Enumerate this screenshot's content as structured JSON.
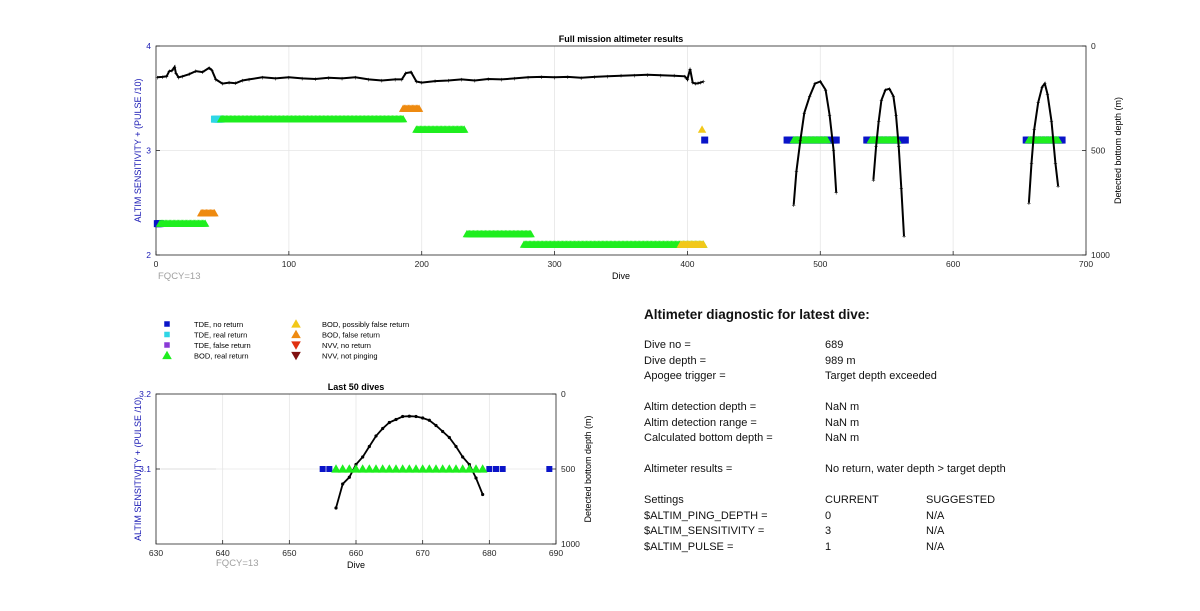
{
  "chart_data": [
    {
      "type": "scatter",
      "title": "Full mission altimeter results",
      "xlabel": "Dive",
      "ylabel": "ALTIM SENSITIVITY + (PULSE /10)",
      "y2label": "Detected bottom depth (m)",
      "xlim": [
        0,
        700
      ],
      "ylim": [
        2,
        4
      ],
      "y2lim": [
        1000,
        0
      ],
      "xticks": [
        0,
        100,
        200,
        300,
        400,
        500,
        600,
        700
      ],
      "yticks": [
        2,
        3,
        4
      ],
      "y2ticks": [
        0,
        500,
        1000
      ],
      "annotation": "FQCY=13",
      "grid": true,
      "series": [
        {
          "name": "Detected bottom depth",
          "color": "#000000",
          "marker_runs": [
            {
              "symbol": "tde-real",
              "x0": 44,
              "x1": 49,
              "y": 3.3
            },
            {
              "symbol": "bod-real",
              "x0": 49,
              "x1": 186,
              "y": 3.3
            },
            {
              "symbol": "bod-false",
              "x0": 186,
              "x1": 198,
              "y": 3.4
            },
            {
              "symbol": "bod-real",
              "x0": 196,
              "x1": 232,
              "y": 3.2
            },
            {
              "symbol": "tde-none",
              "x0": 1,
              "x1": 3,
              "y": 2.3
            },
            {
              "symbol": "bod-real",
              "x0": 3,
              "x1": 37,
              "y": 2.3
            },
            {
              "symbol": "bod-false",
              "x0": 34,
              "x1": 44,
              "y": 2.4
            },
            {
              "symbol": "bod-real",
              "x0": 234,
              "x1": 282,
              "y": 2.2
            },
            {
              "symbol": "bod-real",
              "x0": 277,
              "x1": 412,
              "y": 2.1
            },
            {
              "symbol": "bod-possibly-false",
              "x0": 395,
              "x1": 412,
              "y": 2.1
            },
            {
              "symbol": "tde-none",
              "x0": 413,
              "x1": 413,
              "y": 3.1
            },
            {
              "symbol": "bod-possibly-false",
              "x0": 411,
              "x1": 411,
              "y": 3.2
            },
            {
              "symbol": "tde-none",
              "x0": 475,
              "x1": 512,
              "y": 3.1
            },
            {
              "symbol": "bod-real",
              "x0": 480,
              "x1": 505,
              "y": 3.1
            },
            {
              "symbol": "tde-none",
              "x0": 535,
              "x1": 564,
              "y": 3.1
            },
            {
              "symbol": "bod-real",
              "x0": 538,
              "x1": 558,
              "y": 3.1
            },
            {
              "symbol": "tde-none",
              "x0": 655,
              "x1": 682,
              "y": 3.1
            },
            {
              "symbol": "bod-real",
              "x0": 657,
              "x1": 679,
              "y": 3.1
            }
          ],
          "points": [
            [
              1,
              150
            ],
            [
              5,
              148
            ],
            [
              8,
              145
            ],
            [
              10,
              120
            ],
            [
              12,
              118
            ],
            [
              14,
              100
            ],
            [
              15,
              130
            ],
            [
              17,
              150
            ],
            [
              20,
              145
            ],
            [
              25,
              135
            ],
            [
              30,
              120
            ],
            [
              35,
              125
            ],
            [
              40,
              105
            ],
            [
              42,
              115
            ],
            [
              45,
              160
            ],
            [
              50,
              180
            ],
            [
              55,
              175
            ],
            [
              60,
              178
            ],
            [
              65,
              165
            ],
            [
              70,
              160
            ],
            [
              80,
              150
            ],
            [
              90,
              155
            ],
            [
              100,
              150
            ],
            [
              110,
              155
            ],
            [
              120,
              158
            ],
            [
              130,
              152
            ],
            [
              140,
              155
            ],
            [
              150,
              150
            ],
            [
              160,
              160
            ],
            [
              170,
              165
            ],
            [
              180,
              160
            ],
            [
              185,
              160
            ],
            [
              188,
              130
            ],
            [
              192,
              125
            ],
            [
              196,
              170
            ],
            [
              200,
              175
            ],
            [
              210,
              168
            ],
            [
              220,
              165
            ],
            [
              230,
              160
            ],
            [
              240,
              165
            ],
            [
              250,
              158
            ],
            [
              260,
              160
            ],
            [
              270,
              155
            ],
            [
              280,
              150
            ],
            [
              290,
              148
            ],
            [
              300,
              150
            ],
            [
              310,
              148
            ],
            [
              320,
              152
            ],
            [
              330,
              148
            ],
            [
              340,
              145
            ],
            [
              350,
              142
            ],
            [
              360,
              140
            ],
            [
              370,
              138
            ],
            [
              380,
              140
            ],
            [
              390,
              142
            ],
            [
              398,
              145
            ],
            [
              400,
              160
            ],
            [
              402,
              110
            ],
            [
              404,
              175
            ],
            [
              406,
              180
            ],
            [
              408,
              178
            ],
            [
              410,
              175
            ],
            [
              412,
              170
            ],
            [
              480,
              760
            ],
            [
              482,
              600
            ],
            [
              485,
              450
            ],
            [
              488,
              320
            ],
            [
              492,
              240
            ],
            [
              496,
              180
            ],
            [
              500,
              170
            ],
            [
              504,
              210
            ],
            [
              507,
              330
            ],
            [
              510,
              500
            ],
            [
              512,
              700
            ],
            [
              540,
              640
            ],
            [
              542,
              480
            ],
            [
              544,
              360
            ],
            [
              546,
              260
            ],
            [
              549,
              210
            ],
            [
              552,
              205
            ],
            [
              555,
              240
            ],
            [
              557,
              330
            ],
            [
              559,
              480
            ],
            [
              561,
              680
            ],
            [
              563,
              910
            ],
            [
              657,
              750
            ],
            [
              659,
              560
            ],
            [
              661,
              400
            ],
            [
              664,
              270
            ],
            [
              667,
              195
            ],
            [
              669,
              180
            ],
            [
              671,
              230
            ],
            [
              674,
              360
            ],
            [
              677,
              560
            ],
            [
              679,
              670
            ]
          ]
        }
      ]
    },
    {
      "type": "scatter",
      "title": "Last 50 dives",
      "xlabel": "Dive",
      "ylabel": "ALTIM SENSITIVITY + (PULSE /10)",
      "y2label": "Detected bottom depth (m)",
      "xlim": [
        630,
        690
      ],
      "ylim": [
        3.0,
        3.2
      ],
      "y2lim": [
        1000,
        0
      ],
      "xticks": [
        630,
        640,
        650,
        660,
        670,
        680,
        690
      ],
      "yticks": [
        3.1,
        3.2
      ],
      "y2ticks": [
        0,
        500,
        1000
      ],
      "annotation": "FQCY=13",
      "grid": true,
      "series": [
        {
          "name": "Detected bottom depth",
          "color": "#000000",
          "x": [
            657,
            658,
            659,
            660,
            661,
            662,
            663,
            664,
            665,
            666,
            667,
            668,
            669,
            670,
            671,
            672,
            673,
            674,
            675,
            676,
            677,
            678,
            679
          ],
          "y": [
            760,
            600,
            555,
            470,
            420,
            350,
            280,
            230,
            190,
            170,
            150,
            148,
            150,
            160,
            175,
            210,
            250,
            290,
            350,
            420,
            470,
            560,
            670
          ]
        },
        {
          "name": "TDE, no return",
          "color": "#0a14c8",
          "x": [
            655,
            656,
            680,
            681,
            682,
            689
          ],
          "y": [
            3.1,
            3.1,
            3.1,
            3.1,
            3.1,
            3.1
          ]
        },
        {
          "name": "BOD, real return",
          "color": "#1fee1f",
          "x": [
            657,
            658,
            659,
            660,
            661,
            662,
            663,
            664,
            665,
            666,
            667,
            668,
            669,
            670,
            671,
            672,
            673,
            674,
            675,
            676,
            677,
            678,
            679
          ],
          "y": [
            3.1,
            3.1,
            3.1,
            3.1,
            3.1,
            3.1,
            3.1,
            3.1,
            3.1,
            3.1,
            3.1,
            3.1,
            3.1,
            3.1,
            3.1,
            3.1,
            3.1,
            3.1,
            3.1,
            3.1,
            3.1,
            3.1,
            3.1
          ]
        }
      ]
    }
  ],
  "legend": {
    "col1": [
      {
        "label": "TDE, no return",
        "symbol": "square",
        "color": "#0a14c8"
      },
      {
        "label": "TDE, real return",
        "symbol": "square",
        "color": "#2fd6e6"
      },
      {
        "label": "TDE, false return",
        "symbol": "square",
        "color": "#8a3ad6"
      },
      {
        "label": "BOD, real return",
        "symbol": "tri-up",
        "color": "#1fee1f"
      }
    ],
    "col2": [
      {
        "label": "BOD, possibly false return",
        "symbol": "tri-up",
        "color": "#f2c81a"
      },
      {
        "label": "BOD, false return",
        "symbol": "tri-up",
        "color": "#ee8a10"
      },
      {
        "label": "NVV, no return",
        "symbol": "tri-down",
        "color": "#e03010"
      },
      {
        "label": "NVV, not pinging",
        "symbol": "tri-down",
        "color": "#801010"
      }
    ]
  },
  "diagnostic": {
    "title": "Altimeter diagnostic for latest dive:",
    "dive_no_label": "Dive no =",
    "dive_no": "689",
    "dive_depth_label": "Dive depth =",
    "dive_depth": "989 m",
    "apogee_label": "Apogee trigger =",
    "apogee": "Target depth exceeded",
    "detection_depth_label": "Altim detection depth =",
    "detection_depth": "NaN m",
    "detection_range_label": "Altim detection range =",
    "detection_range": "NaN m",
    "calc_bottom_label": "Calculated bottom depth =",
    "calc_bottom": "NaN m",
    "results_label": "Altimeter results =",
    "results": "No return, water depth > target depth",
    "settings_label": "Settings",
    "current_label": "CURRENT",
    "suggested_label": "SUGGESTED",
    "settings": [
      {
        "name": "$ALTIM_PING_DEPTH =",
        "current": "0",
        "suggested": "N/A"
      },
      {
        "name": "$ALTIM_SENSITIVITY =",
        "current": "3",
        "suggested": "N/A"
      },
      {
        "name": "$ALTIM_PULSE =",
        "current": "1",
        "suggested": "N/A"
      }
    ]
  },
  "colors": {
    "axis_label": "#1a1ab4",
    "annotation": "#a0a0a0",
    "tde_none": "#0a14c8",
    "tde_real": "#2fd6e6",
    "bod_real": "#1fee1f",
    "bod_possibly_false": "#f2c81a",
    "bod_false": "#ee8a10",
    "nvv_none": "#e03010"
  }
}
